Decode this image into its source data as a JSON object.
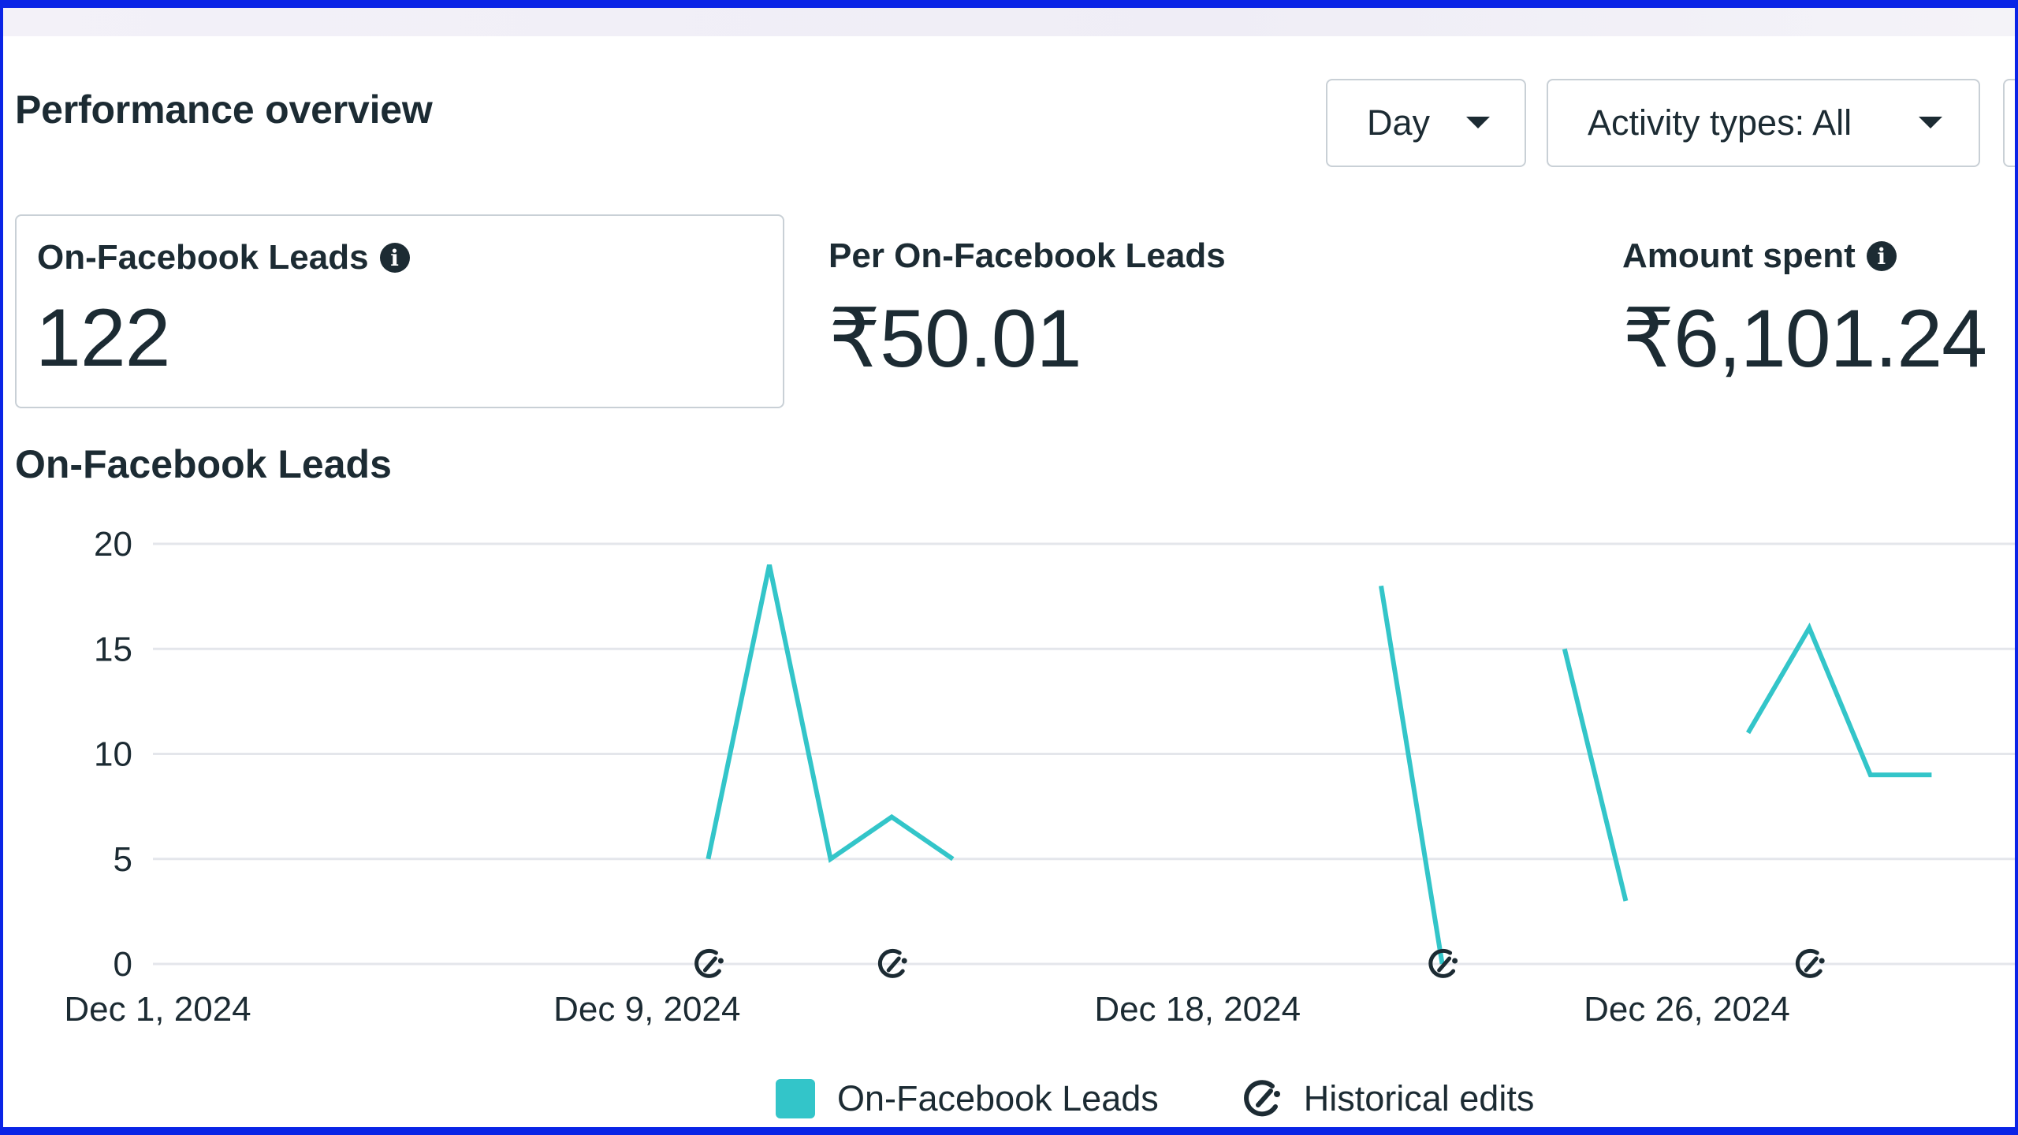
{
  "header": {
    "title": "Performance overview"
  },
  "controls": {
    "granularity": "Day",
    "activity_types": "Activity types: All"
  },
  "metrics": [
    {
      "label": "On-Facebook Leads",
      "value": "122",
      "has_info": true
    },
    {
      "label": "Per On-Facebook Leads",
      "value": "₹50.01",
      "has_info": false
    },
    {
      "label": "Amount spent",
      "value": "₹6,101.24",
      "has_info": true
    }
  ],
  "icons": {
    "info": "info-icon",
    "caret": "caret-down-icon",
    "historical_edit": "historical-edit-icon"
  },
  "colors": {
    "series": "#33c5c9",
    "grid": "#e4e6eb",
    "text": "#1c2b33"
  },
  "chart_data": {
    "type": "line",
    "title": "On-Facebook Leads",
    "xlabel": "",
    "ylabel": "",
    "ylim": [
      0,
      20
    ],
    "yticks": [
      0,
      5,
      10,
      15,
      20
    ],
    "xticks": [
      "Dec 1, 2024",
      "Dec 9, 2024",
      "Dec 18, 2024",
      "Dec 26, 2024"
    ],
    "grid": true,
    "legend": "bottom-center",
    "x_range": [
      "Dec 1, 2024",
      "Dec 30, 2024"
    ],
    "series": [
      {
        "name": "On-Facebook Leads",
        "color": "#33c5c9",
        "segments": [
          [
            {
              "x": "Dec 10, 2024",
              "y": 5
            },
            {
              "x": "Dec 11, 2024",
              "y": 19
            },
            {
              "x": "Dec 12, 2024",
              "y": 5
            },
            {
              "x": "Dec 13, 2024",
              "y": 7
            },
            {
              "x": "Dec 14, 2024",
              "y": 5
            }
          ],
          [
            {
              "x": "Dec 21, 2024",
              "y": 18
            },
            {
              "x": "Dec 22, 2024",
              "y": 0
            }
          ],
          [
            {
              "x": "Dec 24, 2024",
              "y": 15
            },
            {
              "x": "Dec 25, 2024",
              "y": 3
            }
          ],
          [
            {
              "x": "Dec 27, 2024",
              "y": 11
            },
            {
              "x": "Dec 28, 2024",
              "y": 16
            },
            {
              "x": "Dec 29, 2024",
              "y": 9
            },
            {
              "x": "Dec 30, 2024",
              "y": 9
            }
          ]
        ]
      }
    ],
    "historical_edits": [
      "Dec 10, 2024",
      "Dec 13, 2024",
      "Dec 22, 2024",
      "Dec 28, 2024"
    ],
    "legend_items": [
      "On-Facebook Leads",
      "Historical edits"
    ]
  }
}
